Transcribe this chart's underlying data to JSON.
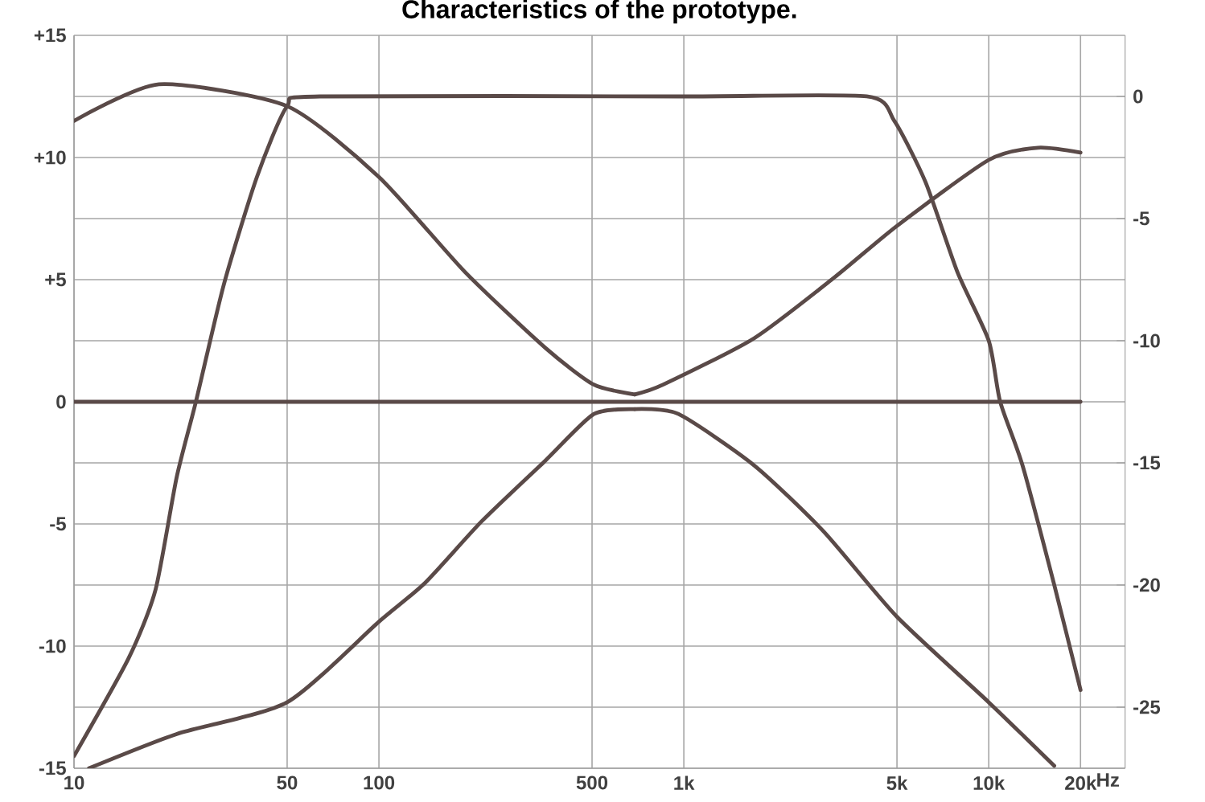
{
  "chart_data": {
    "type": "line",
    "title": "Characteristics of the prototype.",
    "log": "x",
    "grid": true,
    "line_style": "solid",
    "marker": "none",
    "xlim": [
      10,
      28000
    ],
    "ylim": [
      -15,
      15
    ],
    "y2lim": [
      -27.5,
      2.5
    ],
    "xticks": [
      10,
      50,
      100,
      500,
      {
        "value": 1000,
        "label": "1k"
      },
      {
        "value": 5000,
        "label": "5k"
      },
      {
        "value": 10000,
        "label": "10k"
      },
      {
        "value": 20000,
        "label": "20k"
      }
    ],
    "xlabel": "Hz",
    "yticks": [
      {
        "value": -15,
        "label": "-15"
      },
      {
        "value": -12.5,
        "label": null
      },
      {
        "value": -10,
        "label": "-10"
      },
      {
        "value": -7.5,
        "label": null
      },
      {
        "value": -5,
        "label": "-5"
      },
      {
        "value": -2.5,
        "label": null
      },
      {
        "value": 0,
        "label": "0"
      },
      {
        "value": 2.5,
        "label": null
      },
      {
        "value": 5,
        "label": "+5"
      },
      {
        "value": 7.5,
        "label": null
      },
      {
        "value": 10,
        "label": "+10"
      },
      {
        "value": 12.5,
        "label": null
      },
      {
        "value": 15,
        "label": "+15"
      }
    ],
    "y2ticks": [
      0,
      -5,
      -10,
      -15,
      -20,
      -25
    ],
    "series": [
      {
        "color": "#5a4a48",
        "x": [
          10,
          19,
          50,
          100,
          192,
          352,
          507,
          690
        ],
        "values": [
          11.5,
          13.0,
          12.1,
          9.2,
          5.3,
          2.2,
          0.7,
          0.3
        ]
      },
      {
        "color": "#5a4a48",
        "x": [
          690,
          855,
          1700,
          3125,
          5000,
          10000,
          14500,
          20000
        ],
        "values": [
          0.3,
          0.7,
          2.6,
          5.1,
          7.2,
          9.9,
          10.4,
          10.2
        ]
      },
      {
        "color": "#5a4a48",
        "x": [
          11.2,
          21.7,
          50,
          100,
          142,
          217,
          352,
          507,
          690
        ],
        "values": [
          -15,
          -13.6,
          -12.3,
          -9.0,
          -7.4,
          -4.9,
          -2.4,
          -0.5,
          -0.3
        ]
      },
      {
        "color": "#5a4a48",
        "x": [
          690,
          960,
          1700,
          2870,
          5000,
          10000,
          16400
        ],
        "values": [
          -0.3,
          -0.5,
          -2.6,
          -5.3,
          -8.8,
          -12.3,
          -14.9
        ]
      },
      {
        "color": "#5a4a48",
        "x": [
          10,
          20000
        ],
        "values": [
          0,
          0
        ]
      },
      {
        "color": "#5a4a48",
        "axis": "y2",
        "x": [
          10,
          15.1,
          18.5,
          21.7,
          25.1,
          31,
          39.8,
          50,
          64,
          1000,
          3980,
          4900,
          6200,
          7900,
          10000,
          10900,
          12900,
          16400,
          20000
        ],
        "values": [
          -27,
          -23,
          -20.2,
          -15.6,
          -12.5,
          -7.7,
          -3.3,
          -0.4,
          0,
          0,
          0,
          -1,
          -3.5,
          -7.2,
          -10,
          -12.5,
          -15.1,
          -20,
          -24.3
        ]
      }
    ]
  }
}
